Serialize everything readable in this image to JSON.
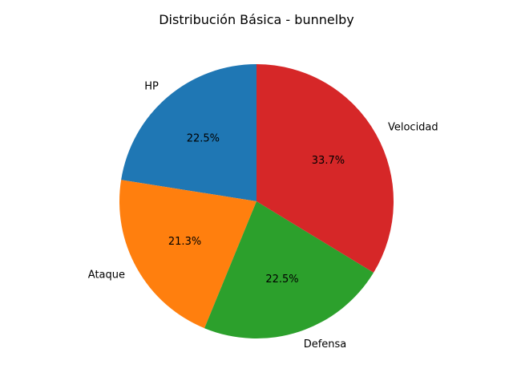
{
  "chart_data": {
    "type": "pie",
    "title": "Distribución Básica - bunnelby",
    "categories": [
      "HP",
      "Ataque",
      "Defensa",
      "Velocidad"
    ],
    "values": [
      22.5,
      21.3,
      22.5,
      33.7
    ],
    "percent_labels": [
      "22.5%",
      "21.3%",
      "22.5%",
      "33.7%"
    ],
    "colors": [
      "#1f77b4",
      "#ff7f0e",
      "#2ca02c",
      "#d62728"
    ],
    "start_angle_deg": 90,
    "direction": "counterclockwise"
  }
}
